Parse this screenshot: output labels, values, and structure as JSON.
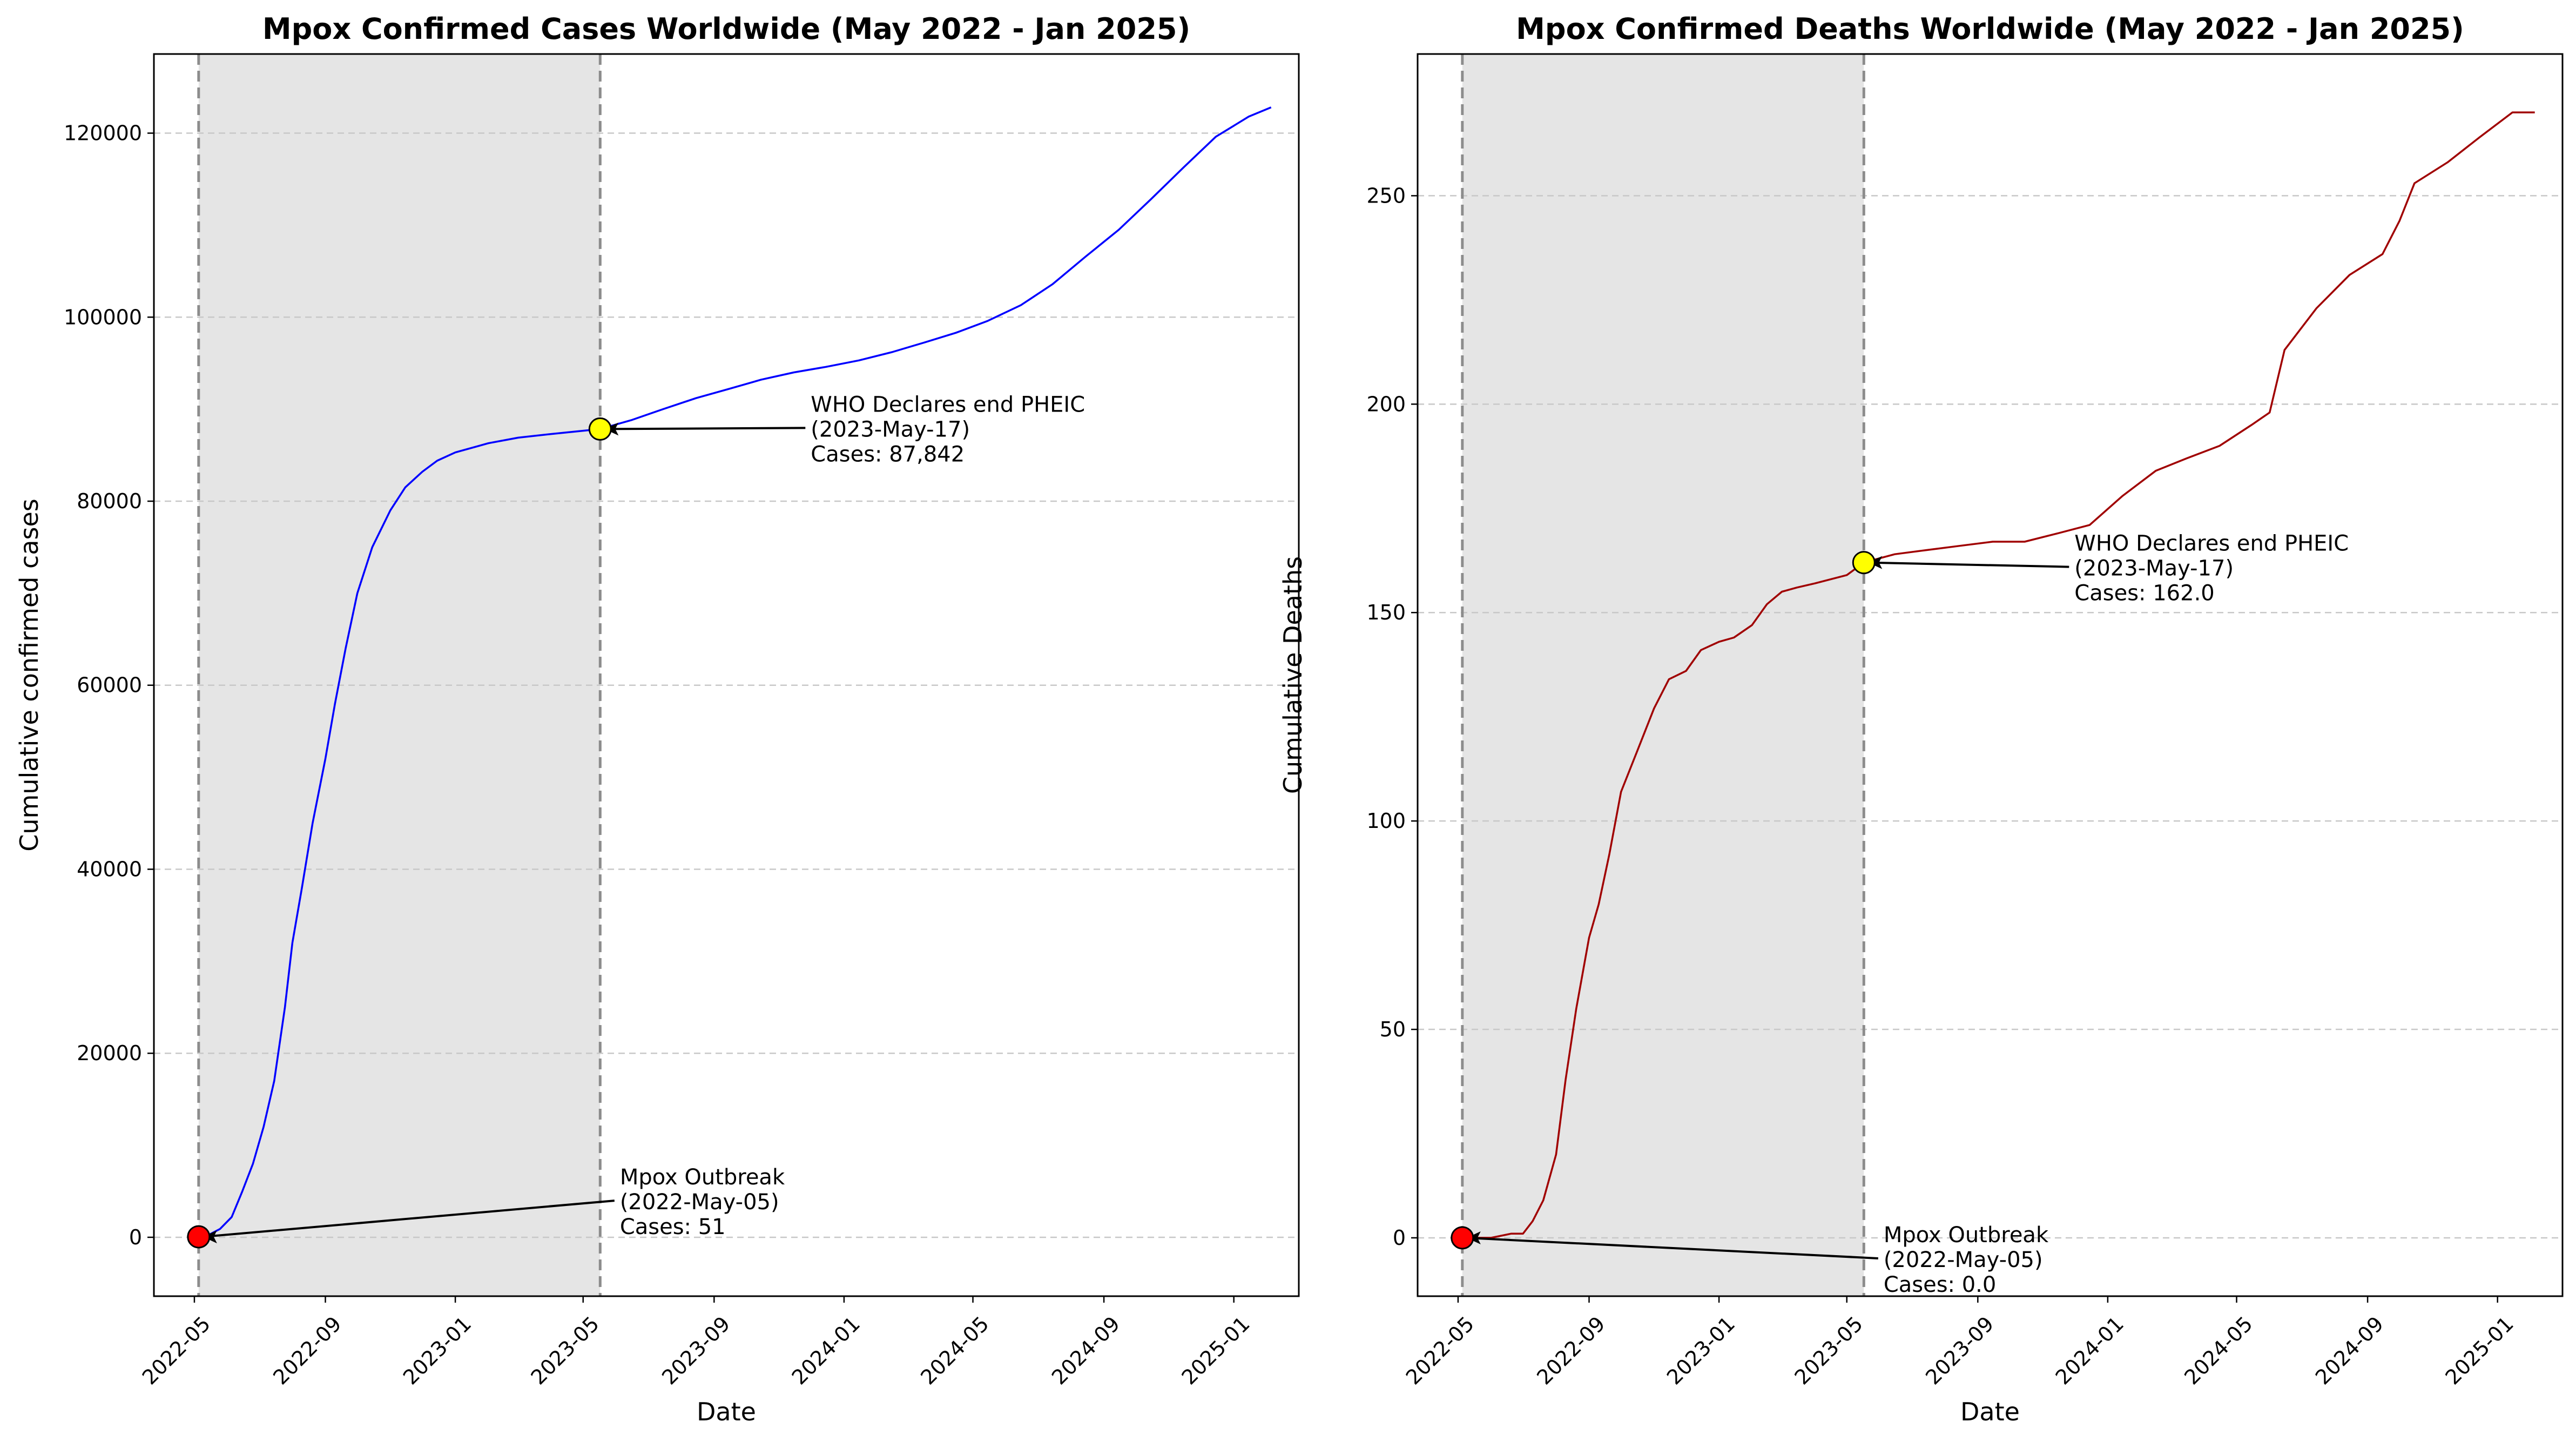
{
  "chart_data": [
    {
      "type": "line",
      "title": "Mpox Confirmed Cases Worldwide (May 2022 - Jan 2025)",
      "xlabel": "Date",
      "ylabel": "Cumulative confirmed cases",
      "x_range": [
        "2022-03-24",
        "2025-03-03"
      ],
      "ylim": [
        -6400,
        128600
      ],
      "x_ticks": [
        "2022-05",
        "2022-09",
        "2023-01",
        "2023-05",
        "2023-09",
        "2024-01",
        "2024-05",
        "2024-09",
        "2025-01"
      ],
      "y_ticks": [
        0,
        20000,
        40000,
        60000,
        80000,
        100000,
        120000
      ],
      "y_tick_labels": [
        "0",
        "20000",
        "40000",
        "60000",
        "80000",
        "100000",
        "120000"
      ],
      "grid": "horizontal dashed",
      "line_color": "#0000ff",
      "shaded_span": [
        "2022-05-05",
        "2023-05-17"
      ],
      "series": [
        {
          "x": [
            "2022-05-05",
            "2022-05-15",
            "2022-05-25",
            "2022-06-05",
            "2022-06-15",
            "2022-06-25",
            "2022-07-05",
            "2022-07-15",
            "2022-07-25",
            "2022-08-01",
            "2022-08-10",
            "2022-08-20",
            "2022-09-01",
            "2022-09-10",
            "2022-09-20",
            "2022-10-01",
            "2022-10-15",
            "2022-11-01",
            "2022-11-15",
            "2022-12-01",
            "2022-12-15",
            "2023-01-01",
            "2023-02-01",
            "2023-03-01",
            "2023-04-01",
            "2023-05-17",
            "2023-06-15",
            "2023-07-15",
            "2023-08-15",
            "2023-09-15",
            "2023-10-15",
            "2023-11-15",
            "2023-12-15",
            "2024-01-15",
            "2024-02-15",
            "2024-03-15",
            "2024-04-15",
            "2024-05-15",
            "2024-06-15",
            "2024-07-15",
            "2024-08-15",
            "2024-09-15",
            "2024-10-15",
            "2024-11-15",
            "2024-12-15",
            "2025-01-15",
            "2025-02-05"
          ],
          "values": [
            51,
            300,
            900,
            2200,
            5000,
            8000,
            12000,
            17000,
            25000,
            32000,
            38000,
            45000,
            52000,
            58000,
            64000,
            70000,
            75000,
            79000,
            81500,
            83200,
            84400,
            85300,
            86300,
            86900,
            87300,
            87842,
            88800,
            90000,
            91200,
            92200,
            93200,
            94000,
            94600,
            95300,
            96200,
            97200,
            98300,
            99600,
            101300,
            103600,
            106600,
            109500,
            112800,
            116300,
            119600,
            121800,
            122800
          ]
        }
      ],
      "annotations": [
        {
          "lines": [
            "Mpox Outbreak",
            "(2022-May-05)",
            "Cases: 51"
          ],
          "x": "2022-05-05",
          "y": 51,
          "marker_color": "#ff0000"
        },
        {
          "lines": [
            "WHO Declares end PHEIC",
            "(2023-May-17)",
            "Cases: 87,842"
          ],
          "x": "2023-05-17",
          "y": 87842,
          "marker_color": "#ffff00"
        }
      ]
    },
    {
      "type": "line",
      "title": "Mpox Confirmed Deaths Worldwide (May 2022 - Jan 2025)",
      "xlabel": "Date",
      "ylabel": "Cumulative Deaths",
      "x_range": [
        "2022-03-24",
        "2025-03-03"
      ],
      "ylim": [
        -14,
        284
      ],
      "x_ticks": [
        "2022-05",
        "2022-09",
        "2023-01",
        "2023-05",
        "2023-09",
        "2024-01",
        "2024-05",
        "2024-09",
        "2025-01"
      ],
      "y_ticks": [
        0,
        50,
        100,
        150,
        200,
        250
      ],
      "y_tick_labels": [
        "0",
        "50",
        "100",
        "150",
        "200",
        "250"
      ],
      "grid": "horizontal dashed",
      "line_color": "#a00000",
      "shaded_span": [
        "2022-05-05",
        "2023-05-17"
      ],
      "series": [
        {
          "x": [
            "2022-05-05",
            "2022-06-01",
            "2022-06-20",
            "2022-07-01",
            "2022-07-10",
            "2022-07-20",
            "2022-08-01",
            "2022-08-10",
            "2022-08-20",
            "2022-09-01",
            "2022-09-10",
            "2022-09-20",
            "2022-10-01",
            "2022-10-15",
            "2022-11-01",
            "2022-11-15",
            "2022-12-01",
            "2022-12-15",
            "2023-01-01",
            "2023-01-15",
            "2023-02-01",
            "2023-02-15",
            "2023-03-01",
            "2023-03-15",
            "2023-04-01",
            "2023-05-01",
            "2023-05-17",
            "2023-06-15",
            "2023-07-15",
            "2023-08-15",
            "2023-09-15",
            "2023-10-15",
            "2023-11-15",
            "2023-12-15",
            "2024-01-15",
            "2024-02-15",
            "2024-03-15",
            "2024-04-15",
            "2024-05-15",
            "2024-06-01",
            "2024-06-15",
            "2024-07-15",
            "2024-08-15",
            "2024-09-15",
            "2024-10-01",
            "2024-10-15",
            "2024-11-15",
            "2024-12-15",
            "2025-01-15",
            "2025-02-05"
          ],
          "values": [
            0,
            0,
            1,
            1,
            4,
            9,
            20,
            38,
            55,
            72,
            80,
            92,
            107,
            116,
            127,
            134,
            136,
            141,
            143,
            144,
            147,
            152,
            155,
            156,
            157,
            159,
            162,
            164,
            165,
            166,
            167,
            167,
            169,
            171,
            178,
            184,
            187,
            190,
            195,
            198,
            213,
            223,
            231,
            236,
            244,
            253,
            258,
            264,
            270,
            270
          ]
        }
      ],
      "annotations": [
        {
          "lines": [
            "Mpox Outbreak",
            "(2022-May-05)",
            "Cases: 0.0"
          ],
          "x": "2022-05-05",
          "y": 0,
          "marker_color": "#ff0000"
        },
        {
          "lines": [
            "WHO Declares end PHEIC",
            "(2023-May-17)",
            "Cases: 162.0"
          ],
          "x": "2023-05-17",
          "y": 162,
          "marker_color": "#ffff00"
        }
      ]
    }
  ]
}
